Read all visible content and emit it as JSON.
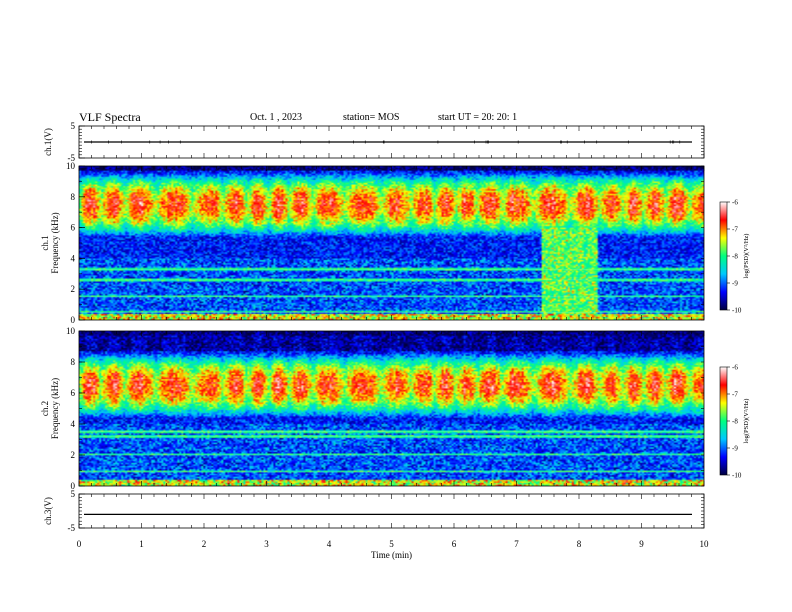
{
  "header": {
    "title": "VLF Spectra",
    "date": "Oct. 1 , 2023",
    "station": "station= MOS",
    "start_ut": "start  UT =   20: 20: 1"
  },
  "chart_data": [
    {
      "type": "line",
      "panel": "ch1-waveform",
      "ylabel": "ch.1(V)",
      "ylim": [
        -5,
        5
      ],
      "yticks": [
        "5",
        "-5"
      ],
      "xlim": [
        0,
        10
      ],
      "series": [
        {
          "values_constant": 0
        }
      ]
    },
    {
      "type": "heatmap",
      "panel": "ch1-spectrogram",
      "ylabel": "ch.1\nFrequency (kHz)",
      "ylim": [
        0,
        10
      ],
      "yticks": [
        "0",
        "2",
        "4",
        "6",
        "8",
        "10"
      ],
      "xlim": [
        0,
        10
      ],
      "colorbar": {
        "label": "log(PSD)(V²/Hz)",
        "range": [
          -10,
          -6
        ],
        "ticks": [
          "-6",
          "-7",
          "-8",
          "-9",
          "-10"
        ],
        "colormap": [
          "#000040",
          "#0000ff",
          "#00c8ff",
          "#00ff80",
          "#ffff00",
          "#ff0000",
          "#ffffff"
        ]
      },
      "features": {
        "emission_band_khz": [
          5.5,
          9.5
        ],
        "broadband_noise_time_min": [
          7.4,
          8.3
        ],
        "tone_lines_khz": [
          0.5,
          1.5,
          2.6,
          3.3
        ]
      }
    },
    {
      "type": "heatmap",
      "panel": "ch2-spectrogram",
      "ylabel": "ch.2\nFrequency (kHz)",
      "ylim": [
        0,
        10
      ],
      "yticks": [
        "0",
        "2",
        "4",
        "6",
        "8",
        "10"
      ],
      "xlim": [
        0,
        10
      ],
      "colorbar": {
        "label": "log(PSD)(V²/Hz)",
        "range": [
          -10,
          -6
        ],
        "ticks": [
          "-6",
          "-7",
          "-8",
          "-9",
          "-10"
        ],
        "colormap": [
          "#000040",
          "#0000ff",
          "#00c8ff",
          "#00ff80",
          "#ffff00",
          "#ff0000",
          "#ffffff"
        ]
      },
      "features": {
        "emission_band_khz": [
          4.5,
          8.5
        ],
        "tone_lines_khz": [
          0.9,
          2.0,
          3.2,
          3.5
        ]
      }
    },
    {
      "type": "line",
      "panel": "ch3-waveform",
      "ylabel": "ch.3(V)",
      "xlabel": "Time (min)",
      "ylim": [
        -5,
        5
      ],
      "yticks": [
        "5",
        "-5"
      ],
      "xlim": [
        0,
        10
      ],
      "xticks": [
        "0",
        "1",
        "2",
        "3",
        "4",
        "5",
        "6",
        "7",
        "8",
        "9",
        "10"
      ],
      "series": [
        {
          "values_constant": -1
        }
      ]
    }
  ]
}
